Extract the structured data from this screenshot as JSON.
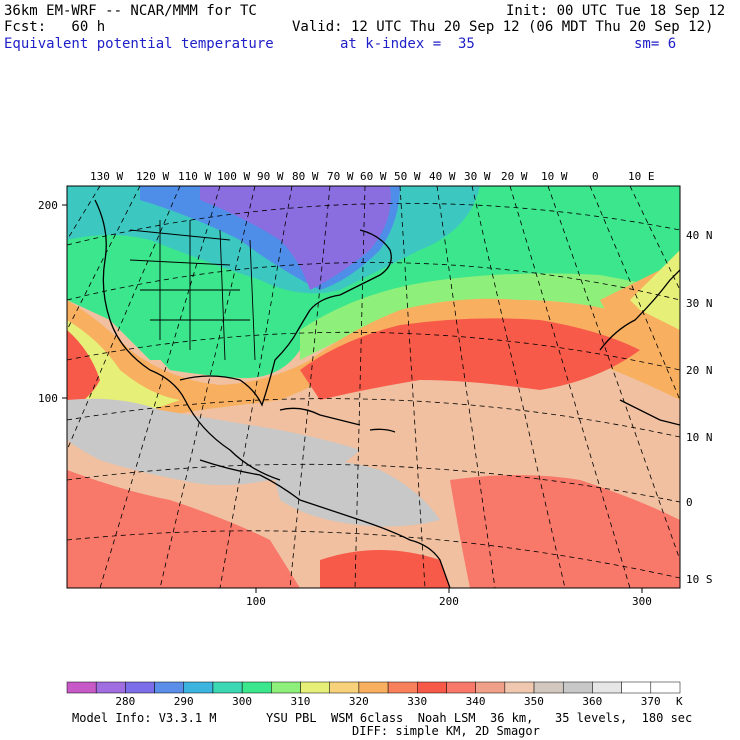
{
  "header": {
    "model": "36km EM-WRF -- NCAR/MMM for TC",
    "init": "Init: 00 UTC Tue 18 Sep 12",
    "fcst": "Fcst:   60 h",
    "valid": "Valid: 12 UTC Thu 20 Sep 12 (06 MDT Thu 20 Sep 12)",
    "field": "Equivalent potential temperature",
    "level": "at k-index =  35",
    "smooth": "sm= 6"
  },
  "map": {
    "lon_labels": [
      "130 W",
      "120 W",
      "110 W",
      "100 W",
      "90 W",
      "80 W",
      "70 W",
      "60 W",
      "50 W",
      "40 W",
      "30 W",
      "20 W",
      "10 W",
      "0",
      "10 E"
    ],
    "lat_labels": [
      "40 N",
      "30 N",
      "20 N",
      "10 N",
      "0",
      "10 S"
    ],
    "left_axis": [
      "200",
      "100"
    ],
    "bottom_axis": [
      "100",
      "200",
      "300"
    ],
    "colors": {
      "deep_purple": "#8a6ee0",
      "blue": "#4f8ee8",
      "teal": "#3cc8c0",
      "green": "#3ce68c",
      "lime": "#8ef07a",
      "yellow": "#e6f078",
      "orange": "#f8b060",
      "red": "#f85a4a",
      "salmon": "#f89078",
      "peach": "#f0c0a0",
      "gray": "#c8c8c8"
    }
  },
  "colorbar": {
    "colors": [
      "#c85ac8",
      "#a06ee0",
      "#7c6ee8",
      "#5a8ee8",
      "#3cb4e0",
      "#3cd8b4",
      "#3ce68c",
      "#8ef07a",
      "#e6f078",
      "#f8d27a",
      "#f8b060",
      "#f8805a",
      "#f85a4a",
      "#f8786a",
      "#f0a088",
      "#f0c8b0",
      "#d2c8c0",
      "#c8c8c8",
      "#e6e6e6",
      "#ffffff",
      "#ffffff"
    ],
    "labels": [
      "280",
      "290",
      "300",
      "310",
      "320",
      "330",
      "340",
      "350",
      "360",
      "370"
    ],
    "unit": "K"
  },
  "footer": {
    "model_info": "Model Info: V3.3.1 M",
    "physics": "YSU PBL  WSM 6class  Noah LSM  36 km,   35 levels,  180 sec",
    "diffusion": "DIFF: simple KM, 2D Smagor"
  }
}
